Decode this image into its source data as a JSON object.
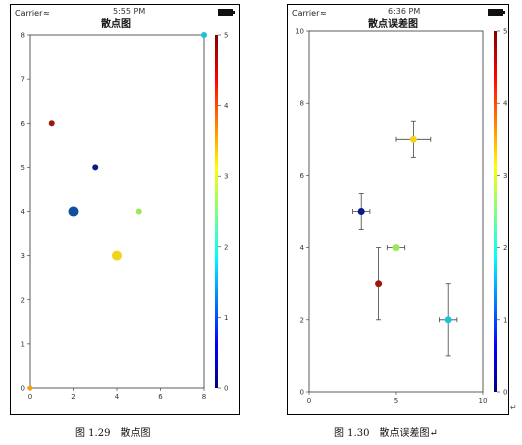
{
  "status_bar": {
    "carrier": "Carrier",
    "time_left": "5:55 PM",
    "time_right": "6:36 PM"
  },
  "chart_data": [
    {
      "type": "scatter",
      "title": "散点图",
      "xlabel": "",
      "ylabel": "",
      "xlim": [
        0,
        8
      ],
      "ylim": [
        0,
        8
      ],
      "xticks": [
        0,
        2,
        4,
        6,
        8
      ],
      "yticks": [
        0,
        1,
        2,
        3,
        4,
        5,
        6,
        7,
        8
      ],
      "points": [
        {
          "x": 0,
          "y": 0,
          "size": 5,
          "color": "#f6a01a"
        },
        {
          "x": 1,
          "y": 6,
          "size": 6,
          "color": "#9b1a10"
        },
        {
          "x": 2,
          "y": 4,
          "size": 10,
          "color": "#0e4fa2"
        },
        {
          "x": 3,
          "y": 5,
          "size": 6,
          "color": "#0a1a8c"
        },
        {
          "x": 4,
          "y": 3,
          "size": 10,
          "color": "#f4d41a"
        },
        {
          "x": 5,
          "y": 4,
          "size": 6,
          "color": "#9be85a"
        },
        {
          "x": 8,
          "y": 8,
          "size": 6,
          "color": "#1ac4d8"
        }
      ],
      "colorbar": {
        "min": 0,
        "max": 5,
        "ticks": [
          0,
          1,
          2,
          3,
          4,
          5
        ]
      },
      "caption": "图 1.29　散点图"
    },
    {
      "type": "scatter",
      "title": "散点误差图",
      "xlabel": "",
      "ylabel": "",
      "xlim": [
        0,
        10
      ],
      "ylim": [
        0,
        10
      ],
      "xticks": [
        0,
        5,
        10
      ],
      "yticks": [
        0,
        2,
        4,
        6,
        8,
        10
      ],
      "points": [
        {
          "x": 3,
          "y": 5,
          "xerr": 0.5,
          "yerr": 0.5,
          "color": "#0a1a8c"
        },
        {
          "x": 4,
          "y": 3,
          "xerr": 0,
          "yerr": 1,
          "color": "#9b1a10"
        },
        {
          "x": 5,
          "y": 4,
          "xerr": 0.5,
          "yerr": 0,
          "color": "#9be85a"
        },
        {
          "x": 6,
          "y": 7,
          "xerr": 1,
          "yerr": 0.5,
          "color": "#f4d41a"
        },
        {
          "x": 8,
          "y": 2,
          "xerr": 0.5,
          "yerr": 1,
          "color": "#1ac4d8"
        }
      ],
      "colorbar": {
        "min": 0,
        "max": 5,
        "ticks": [
          0,
          1,
          2,
          3,
          4,
          5
        ]
      },
      "caption": "图 1.30　散点误差图↵"
    }
  ]
}
